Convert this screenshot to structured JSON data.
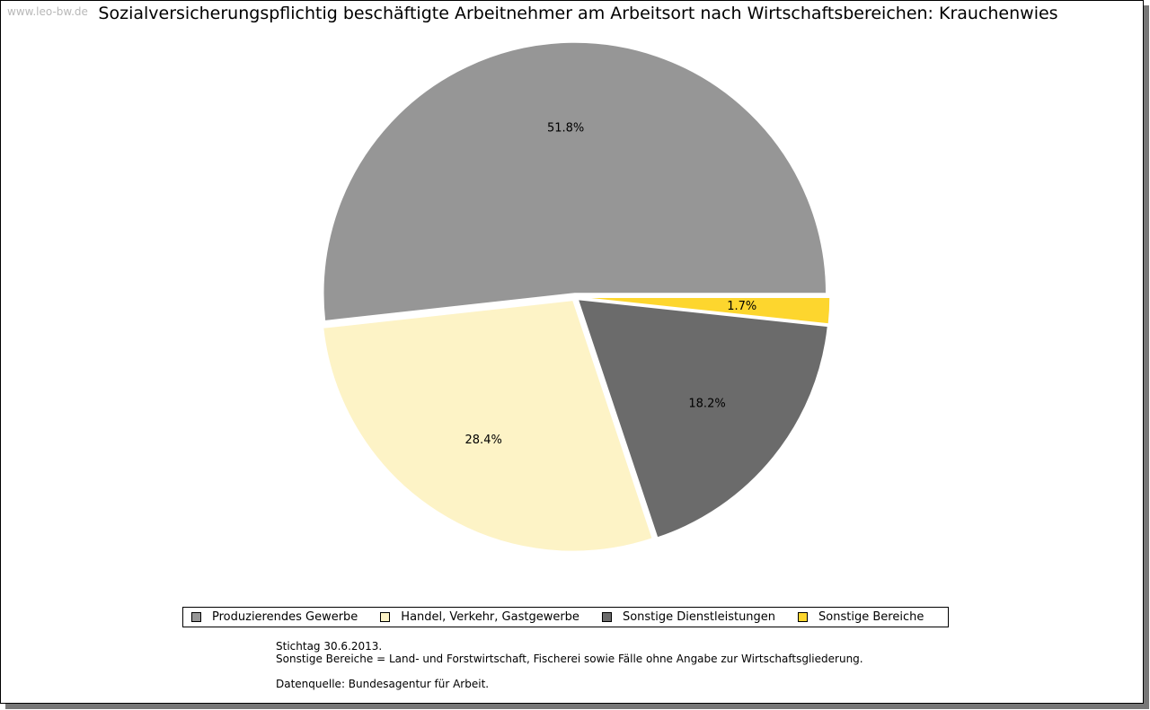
{
  "watermark": "www.leo-bw.de",
  "notes": {
    "line1": "Stichtag 30.6.2013.",
    "line2": "Sonstige Bereiche = Land- und Forstwirtschaft, Fischerei sowie Fälle ohne Angabe zur Wirtschaftsgliederung.",
    "line3": "Datenquelle: Bundesagentur für Arbeit."
  },
  "chart_data": {
    "type": "pie",
    "title": "Sozialversicherungspflichtig beschäftigte Arbeitnehmer am Arbeitsort nach Wirtschaftsbereichen: Krauchenwies",
    "legend_position": "bottom",
    "slices": [
      {
        "label": "Produzierendes Gewerbe",
        "value": 51.8,
        "data_label": "51.8%",
        "color": "#969696"
      },
      {
        "label": "Handel, Verkehr, Gastgewerbe",
        "value": 28.4,
        "data_label": "28.4%",
        "color": "#fdf3c6"
      },
      {
        "label": "Sonstige Dienstleistungen",
        "value": 18.2,
        "data_label": "18.2%",
        "color": "#6b6b6b"
      },
      {
        "label": "Sonstige Bereiche",
        "value": 1.7,
        "data_label": "1.7%",
        "color": "#fdd62e"
      }
    ]
  }
}
